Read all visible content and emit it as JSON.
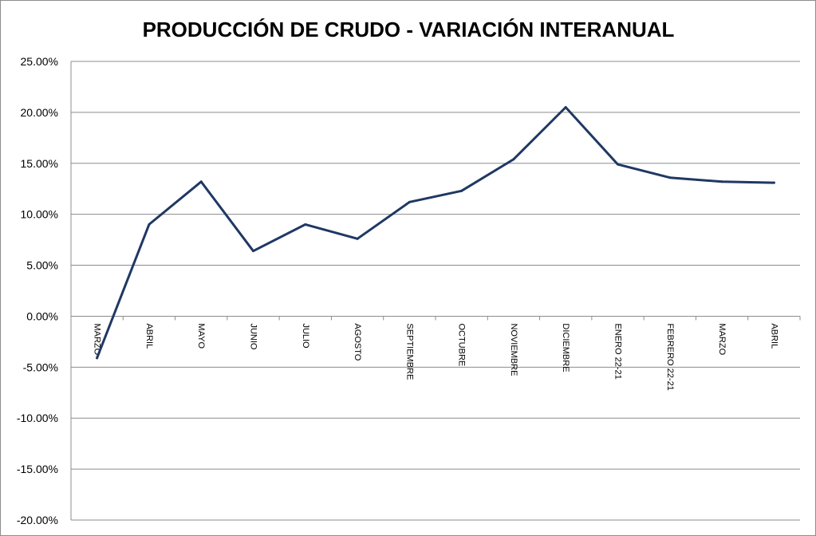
{
  "chart_data": {
    "type": "line",
    "title": "PRODUCCIÓN DE CRUDO - VARIACIÓN INTERANUAL",
    "xlabel": "",
    "ylabel": "",
    "categories": [
      "MARZO",
      "ABRIL",
      "MAYO",
      "JUNIO",
      "JULIO",
      "AGOSTO",
      "SEPTIEMBRE",
      "OCTUBRE",
      "NOVIEMBRE",
      "DICIEMBRE",
      "ENERO 22-21",
      "FEBRERO 22-21",
      "MARZO",
      "ABRIL"
    ],
    "series": [
      {
        "values": [
          -4.1,
          9.0,
          13.2,
          6.4,
          9.0,
          7.6,
          11.2,
          12.3,
          15.4,
          20.5,
          14.9,
          13.6,
          13.2,
          13.1
        ],
        "color": "#1f3864"
      }
    ],
    "ylim": [
      -20,
      25
    ],
    "yticks": [
      25,
      20,
      15,
      10,
      5,
      0,
      -5,
      -10,
      -15,
      -20
    ],
    "ytick_labels": [
      "25.00%",
      "20.00%",
      "15.00%",
      "10.00%",
      "5.00%",
      "0.00%",
      "-5.00%",
      "-10.00%",
      "-15.00%",
      "-20.00%"
    ],
    "grid": true,
    "legend": "none",
    "gridline_color": "#8c8c8c"
  }
}
